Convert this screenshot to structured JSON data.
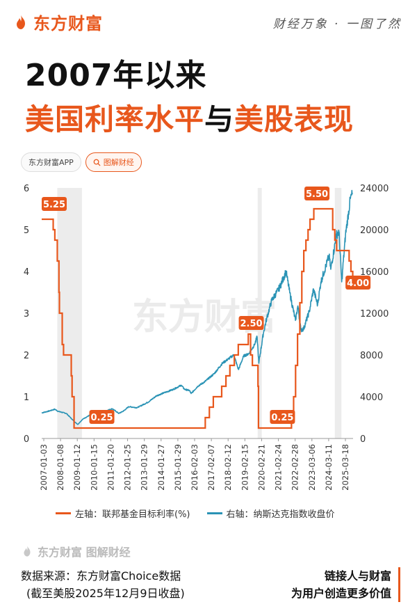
{
  "header": {
    "brand": "东方财富",
    "slogan": "财经万象 · 一图了然"
  },
  "title": {
    "line1": "2007年以来",
    "line2_part1": "美国利率水平",
    "line2_part2": "与",
    "line2_part3": "美股表现"
  },
  "chips": {
    "app": "东方财富APP",
    "search": "图解财经"
  },
  "watermark": "东方财富",
  "legend": {
    "left": "左轴：联邦基金目标利率(%)",
    "right": "右轴：纳斯达克指数收盘价"
  },
  "footer": {
    "logo_text": "东方财富 图解财经",
    "source_line1": "数据来源：东方财富Choice数据",
    "source_line2": "(截至美股2025年12月9日收盘)",
    "tagline_line1": "链接人与财富",
    "tagline_line2": "为用户创造更多价值"
  },
  "colors": {
    "brand": "#e8571c",
    "rate": "#e8571c",
    "nasdaq": "#2a93b5",
    "shade": "#ececec"
  },
  "chart_data": {
    "type": "line",
    "x_tick_labels": [
      "2007-01-03",
      "2008-01-08",
      "2009-01-12",
      "2010-01-15",
      "2011-01-20",
      "2012-01-25",
      "2013-01-29",
      "2014-01-27",
      "2015-01-29",
      "2016-02-03",
      "2017-02-07",
      "2018-02-12",
      "2019-02-15",
      "2020-02-21",
      "2021-02-24",
      "2022-02-28",
      "2023-03-06",
      "2024-03-11",
      "2025-03-18"
    ],
    "y_left": {
      "ylim": [
        0,
        6
      ],
      "ticks": [
        0,
        1,
        2,
        3,
        4,
        5,
        6
      ]
    },
    "y_right": {
      "ylim": [
        0,
        24000
      ],
      "ticks": [
        0,
        4000,
        8000,
        12000,
        16000,
        20000,
        24000
      ]
    },
    "recession_shading": [
      [
        2007.95,
        2009.45
      ],
      [
        2020.15,
        2020.4
      ],
      [
        2024.85,
        2025.25
      ]
    ],
    "series": [
      {
        "name": "左轴：联邦基金目标利率(%)",
        "axis": "left",
        "step": true,
        "points": [
          [
            2007.0,
            5.25
          ],
          [
            2007.7,
            5.0
          ],
          [
            2007.8,
            4.75
          ],
          [
            2007.95,
            4.25
          ],
          [
            2008.05,
            3.5
          ],
          [
            2008.08,
            3.0
          ],
          [
            2008.25,
            2.25
          ],
          [
            2008.33,
            2.0
          ],
          [
            2008.8,
            1.5
          ],
          [
            2008.85,
            1.0
          ],
          [
            2008.97,
            0.25
          ],
          [
            2015.97,
            0.25
          ],
          [
            2016.96,
            0.5
          ],
          [
            2017.21,
            0.75
          ],
          [
            2017.45,
            1.0
          ],
          [
            2017.96,
            1.25
          ],
          [
            2018.22,
            1.5
          ],
          [
            2018.46,
            1.75
          ],
          [
            2018.73,
            2.0
          ],
          [
            2018.97,
            2.25
          ],
          [
            2019.58,
            2.5
          ],
          [
            2019.72,
            2.0
          ],
          [
            2019.83,
            1.75
          ],
          [
            2020.17,
            1.25
          ],
          [
            2020.2,
            0.25
          ],
          [
            2022.21,
            0.5
          ],
          [
            2022.34,
            1.0
          ],
          [
            2022.46,
            1.75
          ],
          [
            2022.58,
            2.5
          ],
          [
            2022.72,
            3.25
          ],
          [
            2022.84,
            4.0
          ],
          [
            2022.96,
            4.5
          ],
          [
            2023.09,
            4.75
          ],
          [
            2023.22,
            5.0
          ],
          [
            2023.34,
            5.25
          ],
          [
            2023.57,
            5.5
          ],
          [
            2024.72,
            5.0
          ],
          [
            2024.85,
            4.75
          ],
          [
            2024.96,
            4.5
          ],
          [
            2025.72,
            4.25
          ],
          [
            2025.83,
            4.0
          ],
          [
            2025.94,
            3.75
          ]
        ]
      },
      {
        "name": "右轴：纳斯达克指数收盘价",
        "axis": "right",
        "points": [
          [
            2007.0,
            2450
          ],
          [
            2007.5,
            2650
          ],
          [
            2007.8,
            2800
          ],
          [
            2008.0,
            2600
          ],
          [
            2008.5,
            2400
          ],
          [
            2008.75,
            2000
          ],
          [
            2009.0,
            1600
          ],
          [
            2009.2,
            1350
          ],
          [
            2009.5,
            1850
          ],
          [
            2010.0,
            2300
          ],
          [
            2010.4,
            2400
          ],
          [
            2010.6,
            2150
          ],
          [
            2011.0,
            2700
          ],
          [
            2011.3,
            2850
          ],
          [
            2011.7,
            2400
          ],
          [
            2012.0,
            2650
          ],
          [
            2012.3,
            3050
          ],
          [
            2012.8,
            2950
          ],
          [
            2013.0,
            3100
          ],
          [
            2013.5,
            3500
          ],
          [
            2014.0,
            4100
          ],
          [
            2014.5,
            4400
          ],
          [
            2015.0,
            4700
          ],
          [
            2015.5,
            5100
          ],
          [
            2015.7,
            4700
          ],
          [
            2016.0,
            4600
          ],
          [
            2016.1,
            4300
          ],
          [
            2016.5,
            5000
          ],
          [
            2016.9,
            5400
          ],
          [
            2017.5,
            6200
          ],
          [
            2018.0,
            7200
          ],
          [
            2018.7,
            8000
          ],
          [
            2018.98,
            6600
          ],
          [
            2019.3,
            7900
          ],
          [
            2019.6,
            8100
          ],
          [
            2019.95,
            8950
          ],
          [
            2020.12,
            9700
          ],
          [
            2020.22,
            7200
          ],
          [
            2020.5,
            10100
          ],
          [
            2020.7,
            11500
          ],
          [
            2021.0,
            13200
          ],
          [
            2021.5,
            14500
          ],
          [
            2021.88,
            16000
          ],
          [
            2022.1,
            14000
          ],
          [
            2022.45,
            11300
          ],
          [
            2022.6,
            12700
          ],
          [
            2022.78,
            10400
          ],
          [
            2022.95,
            10500
          ],
          [
            2023.3,
            12200
          ],
          [
            2023.55,
            14300
          ],
          [
            2023.8,
            12800
          ],
          [
            2024.0,
            15000
          ],
          [
            2024.5,
            17500
          ],
          [
            2024.6,
            16200
          ],
          [
            2024.95,
            19500
          ],
          [
            2025.1,
            19800
          ],
          [
            2025.27,
            15000
          ],
          [
            2025.5,
            19500
          ],
          [
            2025.8,
            23000
          ],
          [
            2025.94,
            23500
          ]
        ]
      }
    ],
    "annotations": [
      {
        "x": 2007.0,
        "y": 5.25,
        "text": "5.25"
      },
      {
        "x": 2009.9,
        "y": 0.25,
        "text": "0.25"
      },
      {
        "x": 2019.0,
        "y": 2.5,
        "text": "2.50"
      },
      {
        "x": 2020.9,
        "y": 0.25,
        "text": "0.25"
      },
      {
        "x": 2023.0,
        "y": 5.5,
        "text": "5.50"
      },
      {
        "x": 2025.5,
        "y": 4.0,
        "text": "4.00"
      }
    ]
  }
}
